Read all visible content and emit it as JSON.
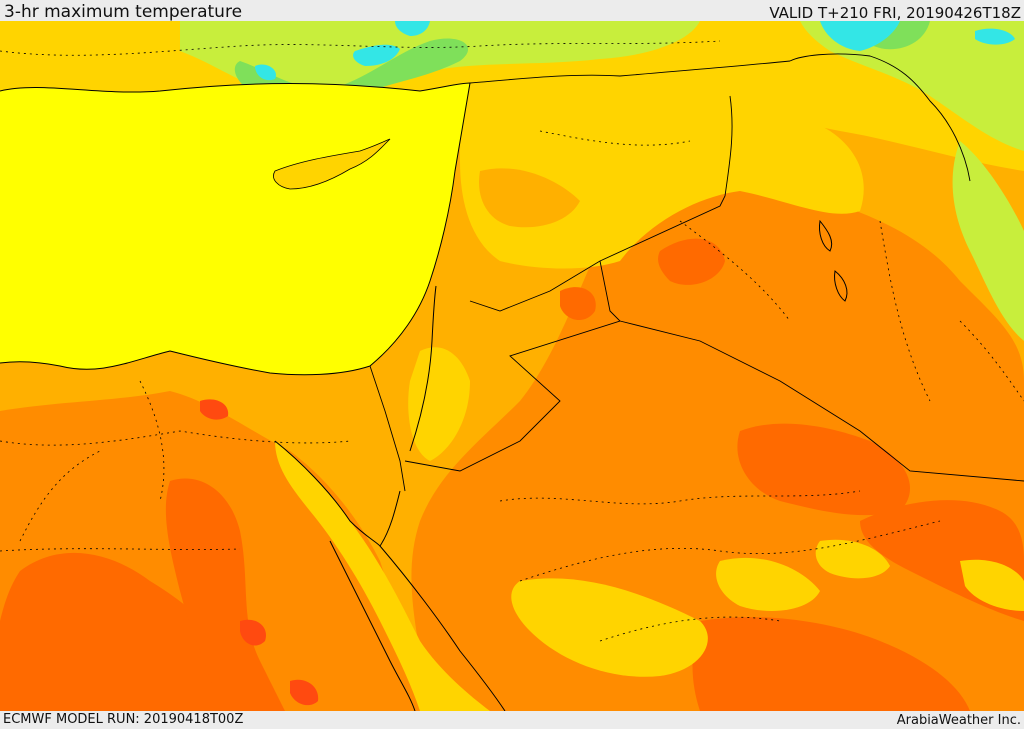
{
  "header": {
    "title": "3-hr maximum temperature",
    "valid": "VALID T+210 FRI, 20190426T18Z"
  },
  "footer": {
    "model_run": "ECMWF MODEL RUN: 20190418T00Z",
    "credit": "ArabiaWeather Inc."
  },
  "map": {
    "colors": {
      "cool_cyan": "#33e6e6",
      "mild_green": "#7fe05a",
      "light_green": "#c8ee3c",
      "yellow": "#ffff00",
      "gold": "#ffd400",
      "orange_light": "#ffb000",
      "orange": "#ff8c00",
      "orange_dark": "#ff6a00",
      "red_orange": "#ff4a10",
      "border_line": "#000000"
    }
  }
}
